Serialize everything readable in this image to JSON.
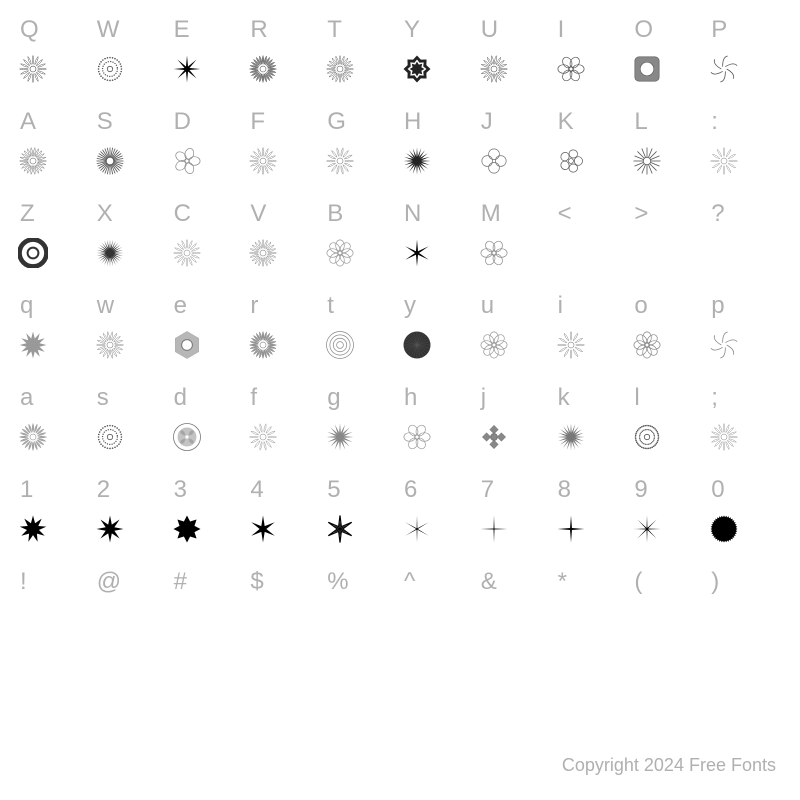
{
  "rows": [
    {
      "chars": [
        "Q",
        "W",
        "E",
        "R",
        "T",
        "Y",
        "U",
        "I",
        "O",
        "P"
      ],
      "glyphs": [
        {
          "type": "rosette",
          "fill": "none",
          "stroke": "#555",
          "petals": 16
        },
        {
          "type": "dotted-ring",
          "fill": "none",
          "stroke": "#555"
        },
        {
          "type": "star",
          "fill": "#000",
          "points": 8,
          "inner": 0.2
        },
        {
          "type": "rosette",
          "fill": "#888",
          "stroke": "#666",
          "petals": 24
        },
        {
          "type": "rosette",
          "fill": "none",
          "stroke": "#666",
          "petals": 20
        },
        {
          "type": "star",
          "fill": "#222",
          "points": 8,
          "inner": 0.55,
          "layered": true
        },
        {
          "type": "rosette",
          "fill": "none",
          "stroke": "#555",
          "petals": 18
        },
        {
          "type": "flower",
          "fill": "none",
          "stroke": "#555",
          "petals": 6
        },
        {
          "type": "square-ornament",
          "fill": "#888",
          "stroke": "#555"
        },
        {
          "type": "swirl",
          "fill": "none",
          "stroke": "#555"
        }
      ]
    },
    {
      "chars": [
        "A",
        "S",
        "D",
        "F",
        "G",
        "H",
        "J",
        "K",
        "L",
        ":"
      ],
      "glyphs": [
        {
          "type": "rosette",
          "fill": "none",
          "stroke": "#777",
          "petals": 22
        },
        {
          "type": "sunburst",
          "fill": "none",
          "stroke": "#555",
          "rays": 32
        },
        {
          "type": "flower",
          "fill": "none",
          "stroke": "#888",
          "petals": 5
        },
        {
          "type": "rosette",
          "fill": "none",
          "stroke": "#888",
          "petals": 16
        },
        {
          "type": "rosette",
          "fill": "none",
          "stroke": "#888",
          "petals": 14
        },
        {
          "type": "sunburst",
          "fill": "#222",
          "stroke": "#222",
          "rays": 20,
          "solid": true
        },
        {
          "type": "loops",
          "fill": "none",
          "stroke": "#777",
          "count": 4
        },
        {
          "type": "flower",
          "fill": "none",
          "stroke": "#555",
          "petals": 5,
          "round": true
        },
        {
          "type": "sunburst",
          "fill": "none",
          "stroke": "#555",
          "rays": 16
        },
        {
          "type": "rosette",
          "fill": "none",
          "stroke": "#999",
          "petals": 12
        }
      ]
    },
    {
      "chars": [
        "Z",
        "X",
        "C",
        "V",
        "B",
        "N",
        "M",
        "<",
        ">",
        "?"
      ],
      "glyphs": [
        {
          "type": "ring",
          "fill": "#333",
          "stroke": "#333",
          "layered": true
        },
        {
          "type": "sunburst",
          "fill": "#333",
          "stroke": "#333",
          "rays": 28,
          "solid": true
        },
        {
          "type": "rosette",
          "fill": "none",
          "stroke": "#999",
          "petals": 16
        },
        {
          "type": "rosette",
          "fill": "none",
          "stroke": "#888",
          "petals": 20
        },
        {
          "type": "flower",
          "fill": "none",
          "stroke": "#999",
          "petals": 8
        },
        {
          "type": "star",
          "fill": "#000",
          "points": 6,
          "inner": 0.15
        },
        {
          "type": "flower",
          "fill": "none",
          "stroke": "#888",
          "petals": 6
        },
        {
          "type": "empty"
        },
        {
          "type": "empty"
        },
        {
          "type": "empty"
        }
      ]
    },
    {
      "chars": [
        "q",
        "w",
        "e",
        "r",
        "t",
        "y",
        "u",
        "i",
        "o",
        "p"
      ],
      "glyphs": [
        {
          "type": "star",
          "fill": "#999",
          "points": 12,
          "inner": 0.5
        },
        {
          "type": "rosette",
          "fill": "none",
          "stroke": "#888",
          "petals": 18
        },
        {
          "type": "hex-ornament",
          "fill": "#888",
          "stroke": "#777"
        },
        {
          "type": "rosette",
          "fill": "#999",
          "stroke": "#888",
          "petals": 24
        },
        {
          "type": "ring",
          "fill": "none",
          "stroke": "#888",
          "concentric": true
        },
        {
          "type": "disc",
          "fill": "#333",
          "texture": true
        },
        {
          "type": "flower",
          "fill": "none",
          "stroke": "#999",
          "petals": 8,
          "soft": true
        },
        {
          "type": "rosette",
          "fill": "none",
          "stroke": "#888",
          "petals": 12
        },
        {
          "type": "flower",
          "fill": "none",
          "stroke": "#888",
          "petals": 8
        },
        {
          "type": "swirl",
          "fill": "none",
          "stroke": "#888"
        }
      ]
    },
    {
      "chars": [
        "a",
        "s",
        "d",
        "f",
        "g",
        "h",
        "j",
        "k",
        "l",
        ";"
      ],
      "glyphs": [
        {
          "type": "rosette",
          "fill": "#aaa",
          "stroke": "#999",
          "petals": 20
        },
        {
          "type": "dotted-ring",
          "fill": "#555",
          "stroke": "#555"
        },
        {
          "type": "medallion",
          "fill": "#888",
          "stroke": "#777"
        },
        {
          "type": "rosette",
          "fill": "none",
          "stroke": "#999",
          "petals": 14
        },
        {
          "type": "sunburst",
          "fill": "#888",
          "stroke": "#888",
          "rays": 16,
          "solid": true
        },
        {
          "type": "flower",
          "fill": "none",
          "stroke": "#999",
          "petals": 6
        },
        {
          "type": "cross-ornament",
          "fill": "#888",
          "stroke": "#777"
        },
        {
          "type": "sunburst",
          "fill": "#777",
          "stroke": "#777",
          "rays": 20,
          "solid": true
        },
        {
          "type": "dotted-ring",
          "fill": "#555",
          "stroke": "#555",
          "dense": true
        },
        {
          "type": "rosette",
          "fill": "none",
          "stroke": "#999",
          "petals": 16
        }
      ]
    },
    {
      "chars": [
        "1",
        "2",
        "3",
        "4",
        "5",
        "6",
        "7",
        "8",
        "9",
        "0"
      ],
      "glyphs": [
        {
          "type": "star",
          "fill": "#000",
          "points": 9,
          "inner": 0.45
        },
        {
          "type": "star",
          "fill": "#000",
          "points": 8,
          "inner": 0.35
        },
        {
          "type": "star",
          "fill": "#000",
          "points": 8,
          "inner": 0.6,
          "rounded": true
        },
        {
          "type": "star",
          "fill": "#000",
          "points": 6,
          "inner": 0.25
        },
        {
          "type": "star",
          "fill": "#000",
          "points": 6,
          "inner": 0.2,
          "outline": true
        },
        {
          "type": "star",
          "fill": "#000",
          "points": 6,
          "inner": 0.1,
          "thin": true
        },
        {
          "type": "star",
          "fill": "#000",
          "points": 4,
          "inner": 0.12,
          "thin": true
        },
        {
          "type": "star",
          "fill": "#000",
          "points": 4,
          "inner": 0.1
        },
        {
          "type": "star",
          "fill": "#000",
          "points": 8,
          "inner": 0.12,
          "thin": true
        },
        {
          "type": "disc",
          "fill": "#000",
          "serrated": true
        }
      ]
    },
    {
      "chars": [
        "!",
        "@",
        "#",
        "$",
        "%",
        "^",
        "&",
        "*",
        "(",
        ")"
      ],
      "glyphs": [
        {
          "type": "empty"
        },
        {
          "type": "empty"
        },
        {
          "type": "empty"
        },
        {
          "type": "empty"
        },
        {
          "type": "empty"
        },
        {
          "type": "empty"
        },
        {
          "type": "empty"
        },
        {
          "type": "empty"
        },
        {
          "type": "empty"
        },
        {
          "type": "empty"
        }
      ]
    }
  ],
  "glyph_size": 30,
  "copyright": "Copyright 2024 Free Fonts",
  "colors": {
    "text": "#b0b0b0",
    "bg": "#ffffff"
  }
}
